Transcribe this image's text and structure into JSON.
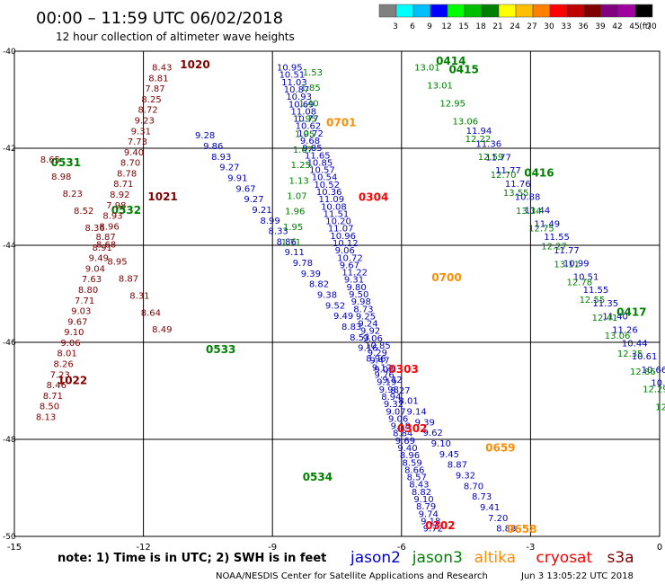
{
  "header": {
    "title": "00:00 – 11:59 UTC 06/02/2018",
    "subtitle": "12 hour collection of altimeter wave heights"
  },
  "colorbar": {
    "ticks": [
      "3",
      "6",
      "9",
      "12",
      "15",
      "18",
      "21",
      "24",
      "27",
      "30",
      "33",
      "36",
      "39",
      "42",
      "45",
      "70",
      "(ft)"
    ],
    "colors": [
      "#808080",
      "#00ffff",
      "#00bfff",
      "#0000ff",
      "#00ff00",
      "#00bf00",
      "#008000",
      "#ffff00",
      "#ffbf00",
      "#ff8000",
      "#ff0000",
      "#bf0000",
      "#800000",
      "#800080",
      "#a000a0",
      "#000000"
    ]
  },
  "footer": {
    "note": "note: 1) Time is in UTC; 2) SWH is in feet",
    "credit": "NOAA/NESDIS Center for Satellite Applications and Research",
    "timestamp": "Jun  3 13:05:22 UTC 2018",
    "legend": [
      {
        "name": "jason2",
        "color": "#0000cc"
      },
      {
        "name": "jason3",
        "color": "#008000"
      },
      {
        "name": "altika",
        "color": "#ff8c00"
      },
      {
        "name": "cryosat",
        "color": "#ff0000"
      },
      {
        "name": "s3a",
        "color": "#800000"
      }
    ]
  },
  "chart_data": {
    "type": "scatter",
    "xlim": [
      -15,
      0
    ],
    "ylim": [
      -50,
      -40
    ],
    "x_ticks": [
      "-15",
      "-12",
      "-9",
      "-6",
      "-3",
      "0"
    ],
    "y_ticks": [
      "-40",
      "-42",
      "-44",
      "-46",
      "-48",
      "-50"
    ],
    "grid": true,
    "series": [
      {
        "name": "jason2",
        "color": "#0000cc",
        "passes": [
          {
            "start": [
              -10.8,
              -41.8
            ],
            "end": [
              -3.8,
              -49.9
            ],
            "values": [
              "9.28",
              "9.86",
              "8.93",
              "9.27",
              "9.91",
              "9.67",
              "9.27",
              "9.21",
              "8.99",
              "8.33",
              "8.86",
              "9.11",
              "9.78",
              "9.39",
              "8.82",
              "9.38",
              "9.52",
              "9.49",
              "8.83",
              "8.53",
              "9.16",
              "8.96",
              "9.03",
              "9.42",
              "8.27",
              "8.01",
              "9.14",
              "9.39",
              "9.62",
              "9.10",
              "9.45",
              "8.87",
              "9.32",
              "8.70",
              "8.73",
              "9.41",
              "7.20",
              "8.88"
            ]
          },
          {
            "start": [
              -8.9,
              -40.4
            ],
            "end": [
              -5.5,
              -49.9
            ],
            "values": [
              "10.95",
              "10.51",
              "11.03",
              "10.87",
              "10.93",
              "10.69",
              "11.08",
              "10.77",
              "10.62",
              "10.72",
              "9.68",
              "9.85",
              "11.65",
              "10.85",
              "10.57",
              "10.54",
              "10.52",
              "10.36",
              "11.09",
              "10.08",
              "11.51",
              "10.20",
              "11.07",
              "10.96",
              "10.12",
              "9.06",
              "10.72",
              "9.67",
              "11.22",
              "9.31",
              "9.80",
              "9.50",
              "9.98",
              "8.73",
              "9.25",
              "9.24",
              "9.92",
              "9.06",
              "10.85",
              "9.29",
              "9.47",
              "9.12",
              "9.76",
              "9.19",
              "9.98",
              "8.94",
              "9.32",
              "9.07",
              "9.06",
              "9.18",
              "8.84",
              "9.69",
              "9.40",
              "8.96",
              "8.59",
              "8.66",
              "8.57",
              "8.43",
              "8.82",
              "9.10",
              "8.79",
              "9.74",
              "9.18",
              "9.72"
            ]
          },
          {
            "start": [
              -4.5,
              -41.7
            ],
            "end": [
              -0.2,
              -46.9
            ],
            "values": [
              "11.94",
              "11.36",
              "11.77",
              "11.77",
              "11.76",
              "10.88",
              "11.44",
              "11.49",
              "11.55",
              "11.77",
              "10.99",
              "10.51",
              "11.55",
              "11.35",
              "11.40",
              "11.26",
              "10.44",
              "10.61",
              "10.66",
              "10.8"
            ]
          }
        ]
      },
      {
        "name": "jason3",
        "color": "#008000",
        "passes": [
          {
            "start": [
              -5.7,
              -40.4
            ],
            "end": [
              -0.1,
              -47.4
            ],
            "values": [
              "13.01",
              "13.01",
              "12.95",
              "13.06",
              "12.22",
              "12.59",
              "12.70",
              "13.55",
              "13.34",
              "12.75",
              "12.27",
              "13.11",
              "12.78",
              "12.55",
              "12.41",
              "13.06",
              "12.35",
              "12.86",
              "12.29",
              "12.2"
            ]
          },
          {
            "start": [
              -8.3,
              -40.5
            ],
            "end": [
              -8.8,
              -44.0
            ],
            "values": [
              "1.53",
              "1.85",
              "1.40",
              "1.95",
              "1.95",
              "1.67",
              "1.25",
              "1.13",
              "1.07",
              "1.96",
              "1.95",
              "1.71"
            ]
          }
        ],
        "labels": [
          {
            "text": "0414",
            "x": -5.2,
            "y": -40.28
          },
          {
            "text": "0415",
            "x": -4.9,
            "y": -40.45
          },
          {
            "text": "0531",
            "x": -14.15,
            "y": -42.37
          },
          {
            "text": "0532",
            "x": -12.75,
            "y": -43.35
          },
          {
            "text": "0533",
            "x": -10.55,
            "y": -46.22
          },
          {
            "text": "0534",
            "x": -8.3,
            "y": -48.85
          },
          {
            "text": "0416",
            "x": -3.15,
            "y": -42.58
          },
          {
            "text": "0417",
            "x": -1.0,
            "y": -45.45
          }
        ]
      },
      {
        "name": "altika",
        "color": "#ff8c00",
        "labels": [
          {
            "text": "0701",
            "x": -7.75,
            "y": -41.55
          },
          {
            "text": "0700",
            "x": -5.3,
            "y": -44.74
          },
          {
            "text": "0659",
            "x": -4.05,
            "y": -48.25
          },
          {
            "text": "0658",
            "x": -3.55,
            "y": -49.93
          }
        ]
      },
      {
        "name": "cryosat",
        "color": "#ff0000",
        "labels": [
          {
            "text": "0304",
            "x": -7.0,
            "y": -43.08
          },
          {
            "text": "0303",
            "x": -6.3,
            "y": -46.63
          },
          {
            "text": "0302",
            "x": -6.1,
            "y": -47.85
          },
          {
            "text": "0302",
            "x": -5.45,
            "y": -49.85
          }
        ]
      },
      {
        "name": "s3a",
        "color": "#800000",
        "passes": [
          {
            "start": [
              -11.8,
              -40.4
            ],
            "end": [
              -14.5,
              -47.6
            ],
            "values": [
              "8.43",
              "8.81",
              "7.87",
              "8.25",
              "8.72",
              "9.23",
              "9.31",
              "7.73",
              "9.40",
              "8.70",
              "8.78",
              "8.71",
              "8.92",
              "7.98",
              "8.93",
              "8.96",
              "8.87",
              "8.91",
              "9.49",
              "9.04",
              "7.63",
              "8.80",
              "7.71",
              "9.03",
              "9.67",
              "9.10",
              "9.06",
              "8.01",
              "8.26",
              "7.23",
              "8.46",
              "8.71",
              "8.50",
              "8.13"
            ]
          },
          {
            "start": [
              -14.4,
              -42.3
            ],
            "end": [
              -11.8,
              -45.8
            ],
            "values": [
              "8.65",
              "8.98",
              "8.23",
              "8.52",
              "8.36",
              "8.68",
              "8.95",
              "8.87",
              "8.31",
              "8.64",
              "8.49"
            ]
          }
        ],
        "labels": [
          {
            "text": "1020",
            "x": -11.15,
            "y": -40.35
          },
          {
            "text": "1021",
            "x": -11.9,
            "y": -43.07
          },
          {
            "text": "1022",
            "x": -14.0,
            "y": -46.86
          }
        ]
      }
    ]
  }
}
